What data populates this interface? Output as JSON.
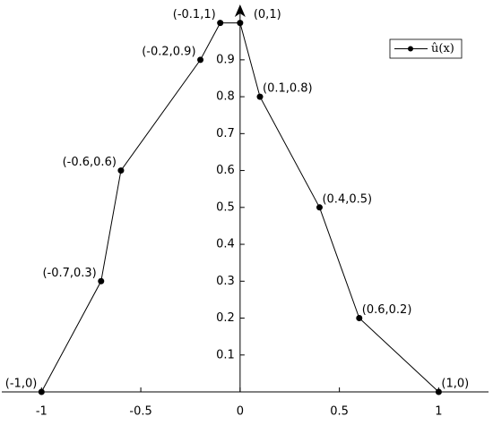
{
  "chart_data": {
    "type": "line",
    "x": [
      -1,
      -0.7,
      -0.6,
      -0.2,
      -0.1,
      0,
      0.1,
      0.4,
      0.6,
      1
    ],
    "series": [
      {
        "name": "û(x)",
        "color": "#000000",
        "values": [
          0,
          0.3,
          0.6,
          0.9,
          1,
          1,
          0.8,
          0.5,
          0.2,
          0
        ],
        "point_labels": [
          "(-1,0)",
          "(-0.7,0.3)",
          "(-0.6,0.6)",
          "(-0.2,0.9)",
          "(-0.1,1)",
          "(0,1)",
          "(0.1,0.8)",
          "(0.4,0.5)",
          "(0.6,0.2)",
          "(1,0)"
        ]
      }
    ],
    "xlim": [
      -1.2,
      1.26
    ],
    "ylim": [
      0,
      1.05
    ],
    "xticks": [
      -1,
      -0.5,
      0,
      0.5,
      1
    ],
    "yticks": [
      0.1,
      0.2,
      0.3,
      0.4,
      0.5,
      0.6,
      0.7,
      0.8,
      0.9
    ],
    "legend": "upper right",
    "axes_through_origin": true
  }
}
